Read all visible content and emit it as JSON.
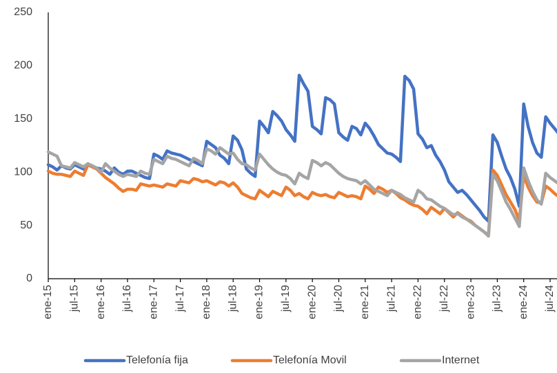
{
  "chart_data": {
    "type": "line",
    "categories": [
      "ene-15",
      null,
      null,
      null,
      null,
      null,
      "jul-15",
      null,
      null,
      null,
      null,
      null,
      "ene-16",
      null,
      null,
      null,
      null,
      null,
      "jul-16",
      null,
      null,
      null,
      null,
      null,
      "ene-17",
      null,
      null,
      null,
      null,
      null,
      "jul-17",
      null,
      null,
      null,
      null,
      null,
      "ene-18",
      null,
      null,
      null,
      null,
      null,
      "jul-18",
      null,
      null,
      null,
      null,
      null,
      "ene-19",
      null,
      null,
      null,
      null,
      null,
      "jul-19",
      null,
      null,
      null,
      null,
      null,
      "ene-20",
      null,
      null,
      null,
      null,
      null,
      "jul-20",
      null,
      null,
      null,
      null,
      null,
      "ene-21",
      null,
      null,
      null,
      null,
      null,
      "jul-21",
      null,
      null,
      null,
      null,
      null,
      "ene-22",
      null,
      null,
      null,
      null,
      null,
      "jul-22",
      null,
      null,
      null,
      null,
      null,
      "ene-23",
      null,
      null,
      null,
      null,
      null,
      "jul-23",
      null,
      null,
      null,
      null,
      null,
      "ene-24",
      null,
      null,
      null,
      null,
      null,
      "jul-24",
      null,
      null
    ],
    "series": [
      {
        "name": "Telefonía fija",
        "color": "#4472c4",
        "values": [
          107,
          105,
          102,
          106,
          104,
          103,
          107,
          105,
          103,
          107,
          105,
          104,
          103,
          101,
          98,
          104,
          100,
          98,
          101,
          101,
          99,
          97,
          95,
          94,
          117,
          115,
          112,
          120,
          118,
          117,
          116,
          114,
          112,
          110,
          108,
          106,
          129,
          126,
          123,
          116,
          113,
          108,
          134,
          130,
          121,
          103,
          99,
          96,
          148,
          143,
          137,
          157,
          153,
          148,
          140,
          135,
          129,
          191,
          183,
          176,
          143,
          140,
          136,
          170,
          168,
          164,
          137,
          133,
          130,
          143,
          141,
          135,
          146,
          141,
          134,
          126,
          122,
          118,
          117,
          114,
          110,
          190,
          186,
          178,
          136,
          131,
          123,
          125,
          116,
          110,
          102,
          91,
          86,
          81,
          83,
          79,
          74,
          69,
          64,
          58,
          54,
          135,
          128,
          115,
          103,
          95,
          84,
          68,
          164,
          143,
          128,
          118,
          114,
          152,
          146,
          141,
          136
        ]
      },
      {
        "name": "Telefonía Movil",
        "color": "#ed7d31",
        "values": [
          101,
          99,
          98,
          98,
          97,
          96,
          101,
          99,
          97,
          107,
          105,
          103,
          99,
          95,
          92,
          89,
          85,
          82,
          84,
          84,
          83,
          89,
          88,
          87,
          88,
          87,
          86,
          89,
          88,
          87,
          92,
          91,
          90,
          94,
          93,
          91,
          92,
          90,
          88,
          91,
          90,
          87,
          90,
          86,
          80,
          78,
          76,
          75,
          83,
          80,
          77,
          82,
          80,
          78,
          86,
          83,
          78,
          80,
          77,
          75,
          81,
          79,
          78,
          79,
          77,
          76,
          81,
          79,
          77,
          78,
          77,
          75,
          87,
          84,
          80,
          86,
          84,
          81,
          83,
          80,
          76,
          74,
          71,
          69,
          68,
          65,
          61,
          67,
          64,
          61,
          66,
          62,
          58,
          62,
          59,
          56,
          54,
          50,
          47,
          44,
          41,
          102,
          97,
          88,
          79,
          72,
          65,
          55,
          97,
          86,
          78,
          72,
          71,
          87,
          84,
          80,
          77
        ]
      },
      {
        "name": "Internet",
        "color": "#a5a5a5",
        "values": [
          119,
          117,
          115,
          106,
          105,
          104,
          109,
          107,
          105,
          108,
          106,
          104,
          100,
          108,
          104,
          101,
          98,
          96,
          98,
          97,
          96,
          101,
          99,
          98,
          112,
          110,
          108,
          115,
          113,
          112,
          110,
          108,
          106,
          113,
          111,
          108,
          122,
          120,
          117,
          123,
          120,
          117,
          118,
          112,
          108,
          107,
          104,
          102,
          117,
          112,
          107,
          103,
          100,
          98,
          97,
          94,
          89,
          99,
          96,
          94,
          111,
          109,
          106,
          109,
          107,
          103,
          99,
          96,
          94,
          93,
          92,
          89,
          92,
          88,
          84,
          82,
          80,
          78,
          83,
          81,
          79,
          76,
          74,
          72,
          83,
          80,
          75,
          74,
          71,
          68,
          66,
          63,
          60,
          61,
          58,
          56,
          53,
          50,
          47,
          44,
          40,
          98,
          92,
          82,
          72,
          65,
          57,
          49,
          104,
          92,
          82,
          74,
          70,
          99,
          95,
          92,
          89
        ]
      }
    ],
    "ylim": [
      0,
      250
    ],
    "yticks": [
      0,
      50,
      100,
      150,
      200,
      250
    ],
    "grid": false,
    "legend": "bottom"
  }
}
